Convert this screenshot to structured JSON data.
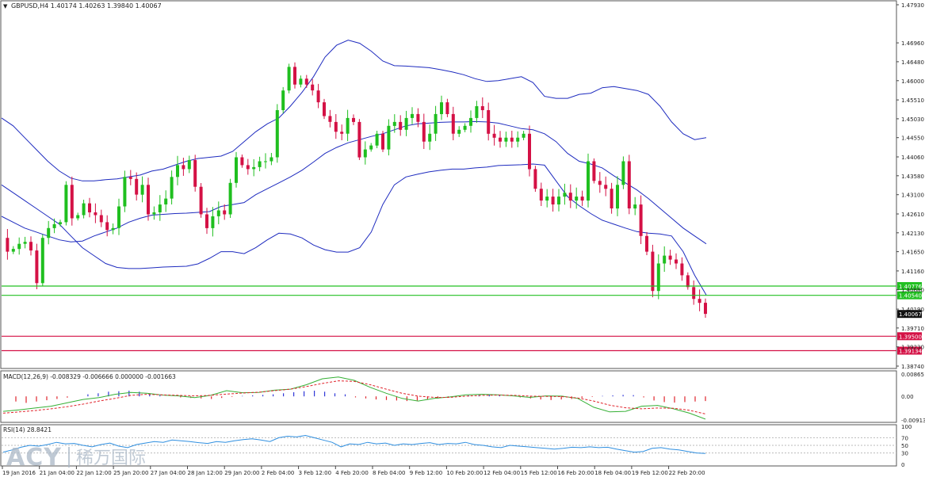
{
  "header": {
    "triangle": "▼",
    "text": "GBPUSD,H4  1.40174 1.40263 1.39840 1.40067"
  },
  "colors": {
    "bull": "#1fbf1f",
    "bear": "#d41145",
    "band": "#1e2bbf",
    "support": "#22c022",
    "resistance": "#d41145",
    "macd_hist_pos": "#3038d8",
    "macd_hist_neg": "#e0232b",
    "macd_line": "#35b035",
    "signal_line": "#e0232b",
    "rsi_line": "#2f8fe0",
    "axis_text": "#222222"
  },
  "chart_data": {
    "type": "candlestick",
    "symbol": "GBPUSD",
    "timeframe": "H4",
    "ohlc_last": {
      "open": 1.40174,
      "high": 1.40263,
      "low": 1.3984,
      "close": 1.40067
    },
    "price_axis": {
      "range": [
        1.3874,
        1.4793
      ],
      "labels": [
        "1.47930",
        "1.46960",
        "1.46480",
        "1.46000",
        "1.45510",
        "1.45030",
        "1.44550",
        "1.44060",
        "1.43580",
        "1.43100",
        "1.42610",
        "1.42130",
        "1.41650",
        "1.41160",
        "1.40680",
        "1.40190",
        "1.39710",
        "1.39230",
        "1.38740"
      ],
      "values": [
        1.4793,
        1.4696,
        1.4648,
        1.46,
        1.4551,
        1.4503,
        1.4455,
        1.4406,
        1.4358,
        1.431,
        1.4261,
        1.4213,
        1.4165,
        1.4116,
        1.4068,
        1.4019,
        1.3971,
        1.3923,
        1.3874
      ]
    },
    "time_labels": [
      "19 Jan 2016",
      "21 Jan 04:00",
      "22 Jan 12:00",
      "25 Jan 20:00",
      "27 Jan 04:00",
      "28 Jan 12:00",
      "29 Jan 20:00",
      "2 Feb 04:00",
      "3 Feb 12:00",
      "4 Feb 20:00",
      "8 Feb 04:00",
      "9 Feb 12:00",
      "10 Feb 20:00",
      "12 Feb 04:00",
      "15 Feb 12:00",
      "16 Feb 20:00",
      "18 Feb 04:00",
      "19 Feb 12:00",
      "22 Feb 20:00"
    ],
    "levels": [
      {
        "label": "1.40776",
        "value": 1.40776,
        "kind": "support"
      },
      {
        "label": "1.40540",
        "value": 1.4054,
        "kind": "support"
      },
      {
        "label": "1.39500",
        "value": 1.395,
        "kind": "resistance"
      },
      {
        "label": "1.39134",
        "value": 1.39134,
        "kind": "resistance"
      }
    ],
    "current_price": {
      "label": "1.40067",
      "value": 1.40067
    },
    "price_path": [
      1.42,
      1.4165,
      1.4172,
      1.4185,
      1.419,
      1.4168,
      1.4085,
      1.42,
      1.4225,
      1.4235,
      1.424,
      1.4335,
      1.425,
      1.4258,
      1.4288,
      1.4265,
      1.4258,
      1.424,
      1.422,
      1.4225,
      1.428,
      1.4355,
      1.435,
      1.431,
      1.4335,
      1.426,
      1.4265,
      1.4285,
      1.43,
      1.4355,
      1.4385,
      1.4375,
      1.4398,
      1.433,
      1.426,
      1.4225,
      1.4255,
      1.427,
      1.426,
      1.434,
      1.4405,
      1.4385,
      1.4375,
      1.438,
      1.4395,
      1.4395,
      1.4405,
      1.4525,
      1.4575,
      1.4635,
      1.459,
      1.4605,
      1.459,
      1.4575,
      1.4545,
      1.451,
      1.4495,
      1.447,
      1.4465,
      1.4505,
      1.4495,
      1.4405,
      1.4425,
      1.4435,
      1.4465,
      1.4425,
      1.4485,
      1.4495,
      1.4475,
      1.4505,
      1.4515,
      1.4495,
      1.4445,
      1.4465,
      1.4515,
      1.4545,
      1.4515,
      1.4465,
      1.4475,
      1.4485,
      1.4505,
      1.4535,
      1.4525,
      1.4465,
      1.4455,
      1.4445,
      1.4455,
      1.4445,
      1.4455,
      1.4465,
      1.4375,
      1.4325,
      1.4295,
      1.4305,
      1.4285,
      1.4305,
      1.4315,
      1.4295,
      1.4305,
      1.4295,
      1.4395,
      1.4345,
      1.4335,
      1.4325,
      1.4275,
      1.4335,
      1.4395,
      1.4275,
      1.4285,
      1.4205,
      1.4165,
      1.4065,
      1.4135,
      1.4155,
      1.4145,
      1.4135,
      1.4105,
      1.4075,
      1.4045,
      1.4035,
      1.40067
    ],
    "bands": {
      "upper": [
        1.4505,
        1.4485,
        1.4455,
        1.4425,
        1.4395,
        1.437,
        1.4352,
        1.4345,
        1.4345,
        1.4348,
        1.435,
        1.4355,
        1.436,
        1.437,
        1.4375,
        1.4385,
        1.4395,
        1.4402,
        1.4405,
        1.4408,
        1.442,
        1.4445,
        1.447,
        1.449,
        1.4505,
        1.4535,
        1.457,
        1.461,
        1.466,
        1.469,
        1.4703,
        1.4695,
        1.4675,
        1.465,
        1.4638,
        1.4637,
        1.4635,
        1.4633,
        1.4628,
        1.4622,
        1.4615,
        1.4605,
        1.4598,
        1.46,
        1.4605,
        1.461,
        1.4595,
        1.456,
        1.4555,
        1.4555,
        1.4565,
        1.4568,
        1.4582,
        1.4585,
        1.458,
        1.4575,
        1.4565,
        1.4535,
        1.4495,
        1.4465,
        1.445,
        1.4455
      ],
      "lower": [
        1.4335,
        1.4315,
        1.4295,
        1.4275,
        1.4255,
        1.4235,
        1.4205,
        1.4175,
        1.4155,
        1.4135,
        1.4125,
        1.4122,
        1.4122,
        1.4124,
        1.4126,
        1.4127,
        1.4128,
        1.4134,
        1.4148,
        1.4165,
        1.4165,
        1.416,
        1.4175,
        1.4195,
        1.4212,
        1.421,
        1.42,
        1.4182,
        1.417,
        1.4164,
        1.4164,
        1.4175,
        1.4215,
        1.4285,
        1.4335,
        1.4355,
        1.4362,
        1.4368,
        1.4372,
        1.4375,
        1.4375,
        1.4378,
        1.438,
        1.4384,
        1.4385,
        1.4386,
        1.4388,
        1.4385,
        1.4345,
        1.4305,
        1.4282,
        1.4262,
        1.4245,
        1.4235,
        1.4225,
        1.4216,
        1.4212,
        1.421,
        1.4205,
        1.4165,
        1.4105,
        1.4055
      ],
      "middle": [
        1.4255,
        1.424,
        1.4225,
        1.4215,
        1.4205,
        1.4195,
        1.419,
        1.4192,
        1.4205,
        1.4215,
        1.4225,
        1.424,
        1.425,
        1.4258,
        1.426,
        1.4262,
        1.4263,
        1.4265,
        1.4267,
        1.428,
        1.4285,
        1.429,
        1.431,
        1.4325,
        1.434,
        1.4355,
        1.4372,
        1.4393,
        1.4415,
        1.443,
        1.4442,
        1.445,
        1.4458,
        1.4465,
        1.4475,
        1.4485,
        1.449,
        1.4492,
        1.4494,
        1.4495,
        1.4495,
        1.4496,
        1.4495,
        1.4492,
        1.4485,
        1.4478,
        1.4475,
        1.4465,
        1.4445,
        1.4415,
        1.4395,
        1.4388,
        1.4378,
        1.4358,
        1.434,
        1.4322,
        1.43,
        1.4275,
        1.425,
        1.4225,
        1.4205,
        1.4185
      ]
    },
    "macd": {
      "label": "MACD(12,26,9) -0.008329 -0.006666 0.000000 -0.001663",
      "axis_labels": [
        "0.00865",
        "0.00",
        "-0.009136"
      ],
      "axis_values": [
        0.00865,
        0.0,
        -0.009136
      ],
      "histogram": [
        -0.002,
        -0.0025,
        -0.002,
        -0.0015,
        -0.001,
        -0.0005,
        0.0,
        0.0008,
        0.0012,
        0.0018,
        0.002,
        0.0022,
        0.0018,
        0.001,
        0.0004,
        0.0,
        -0.0004,
        -0.0006,
        -0.0008,
        -0.001,
        -0.0006,
        -0.0002,
        0.0002,
        0.0004,
        0.0006,
        0.0008,
        0.0012,
        0.0016,
        0.002,
        0.0022,
        0.0018,
        0.0012,
        0.0008,
        -0.0004,
        -0.0008,
        -0.0012,
        -0.0014,
        -0.0016,
        -0.0018,
        -0.0016,
        -0.0012,
        -0.0008,
        -0.0004,
        0.0,
        0.0004,
        0.0006,
        0.0008,
        0.0005,
        0.0,
        -0.0004,
        -0.0008,
        -0.0012,
        -0.0014,
        -0.0012,
        -0.001,
        -0.0006,
        -0.0002,
        0.0002,
        0.0004,
        0.0006,
        0.0005,
        -0.0004,
        -0.0016,
        -0.0022,
        -0.0024,
        -0.0022,
        -0.002,
        -0.0018
      ],
      "macd_line": [
        -0.0058,
        -0.0052,
        -0.0045,
        -0.0038,
        -0.0025,
        -0.0012,
        -0.0005,
        0.0008,
        0.0015,
        0.0012,
        0.0005,
        0.0002,
        -0.0005,
        0.0004,
        0.0022,
        0.0014,
        0.0015,
        0.0024,
        0.0028,
        0.0045,
        0.0068,
        0.0075,
        0.0062,
        0.0035,
        0.0012,
        -0.0008,
        -0.0018,
        -0.0008,
        -0.0002,
        0.0006,
        0.0008,
        0.0006,
        0.0002,
        -0.0004,
        0.0002,
        0.0001,
        -0.0008,
        -0.0042,
        -0.006,
        -0.0058,
        -0.0038,
        -0.0035,
        -0.0048,
        -0.0065,
        -0.0088
      ],
      "signal_line": [
        -0.0065,
        -0.006,
        -0.0055,
        -0.0048,
        -0.004,
        -0.003,
        -0.0018,
        -0.0008,
        0.0004,
        0.0008,
        0.0006,
        0.0004,
        0.0002,
        0.0004,
        0.0009,
        0.0013,
        0.0016,
        0.0022,
        0.0028,
        0.0038,
        0.005,
        0.006,
        0.0058,
        0.0045,
        0.0028,
        0.0012,
        0.0001,
        -0.0004,
        -0.0004,
        0.0001,
        0.0004,
        0.0005,
        0.0004,
        0.0001,
        0.0,
        -0.0001,
        -0.0006,
        -0.0018,
        -0.0034,
        -0.0044,
        -0.0048,
        -0.0045,
        -0.0046,
        -0.0054,
        -0.0068
      ]
    },
    "rsi": {
      "label": "RSI(14) 28.8421",
      "axis_labels": [
        "100",
        "70",
        "50",
        "30",
        "0"
      ],
      "axis_values": [
        100,
        70,
        50,
        30,
        0
      ],
      "line": [
        32,
        38,
        45,
        50,
        48,
        52,
        58,
        54,
        55,
        50,
        46,
        52,
        56,
        48,
        44,
        52,
        56,
        60,
        58,
        64,
        62,
        60,
        57,
        55,
        60,
        58,
        62,
        65,
        67,
        64,
        60,
        70,
        74,
        72,
        76,
        70,
        64,
        58,
        46,
        54,
        52,
        58,
        54,
        56,
        50,
        54,
        52,
        55,
        57,
        52,
        55,
        54,
        58,
        52,
        50,
        46,
        44,
        50,
        48,
        46,
        44,
        42,
        40,
        42,
        45,
        44,
        46,
        44,
        45,
        40,
        36,
        32,
        34,
        42,
        44,
        40,
        38,
        34,
        30,
        28.8421
      ]
    }
  },
  "watermark": {
    "brand": "ACY",
    "cn": "稀万国际"
  }
}
